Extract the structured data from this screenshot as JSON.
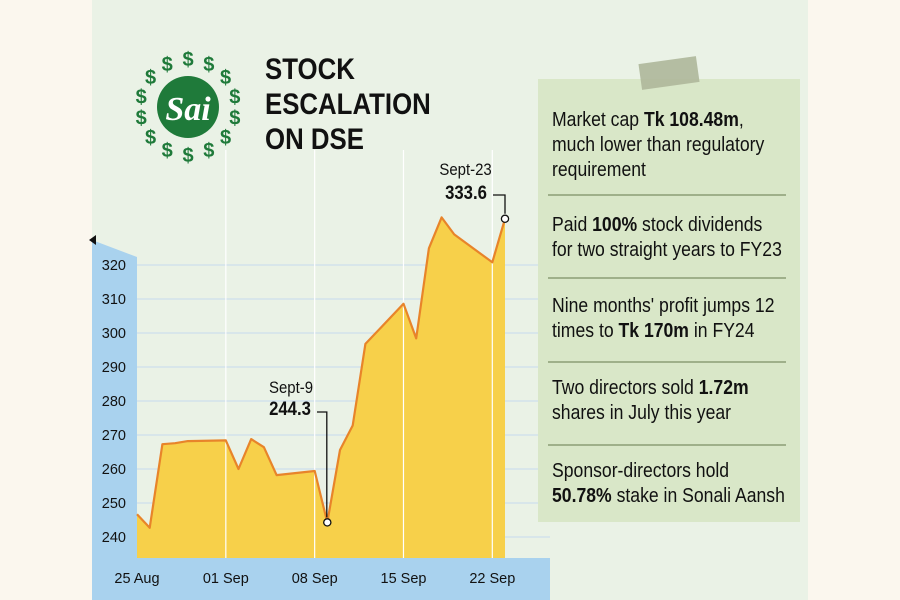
{
  "headline": [
    "STOCK",
    "ESCALATION",
    "ON DSE"
  ],
  "logo": {
    "text": "Sai",
    "ring_char": "$",
    "color": "#1f7a3a"
  },
  "colors": {
    "area_fill": "#f7d04a",
    "line": "#e8842a",
    "axis_band": "#a9d2ee",
    "panel": "#eaf2e6",
    "note_card": "#d9e7c8"
  },
  "notes": [
    {
      "lines": [
        [
          {
            "t": "Market cap "
          },
          {
            "t": "Tk 108.48m",
            "b": true
          },
          {
            "t": ","
          }
        ],
        [
          {
            "t": "much lower than regulatory"
          }
        ],
        [
          {
            "t": "requirement"
          }
        ]
      ]
    },
    {
      "lines": [
        [
          {
            "t": "Paid "
          },
          {
            "t": "100%",
            "b": true
          },
          {
            "t": " stock dividends"
          }
        ],
        [
          {
            "t": "for two straight years to FY23"
          }
        ]
      ]
    },
    {
      "lines": [
        [
          {
            "t": "Nine months' profit jumps 12"
          }
        ],
        [
          {
            "t": "times to "
          },
          {
            "t": "Tk 170m",
            "b": true
          },
          {
            "t": " in FY24"
          }
        ]
      ]
    },
    {
      "lines": [
        [
          {
            "t": "Two directors sold "
          },
          {
            "t": "1.72m",
            "b": true
          }
        ],
        [
          {
            "t": "shares in July this year"
          }
        ]
      ]
    },
    {
      "lines": [
        [
          {
            "t": "Sponsor-directors hold"
          }
        ],
        [
          {
            "t": "50.78%",
            "b": true
          },
          {
            "t": " stake in Sonali Aansh"
          }
        ]
      ]
    }
  ],
  "annotations": [
    {
      "date": "Sept-9",
      "value": "244.3"
    },
    {
      "date": "Sept-23",
      "value": "333.6"
    }
  ],
  "chart_data": {
    "type": "area",
    "title": "",
    "xlabel": "",
    "ylabel": "",
    "x_ticks": [
      "25 Aug",
      "01 Sep",
      "08 Sep",
      "15 Sep",
      "22 Sep"
    ],
    "y_ticks": [
      240,
      250,
      260,
      270,
      280,
      290,
      300,
      310,
      320
    ],
    "ylim": [
      234,
      326
    ],
    "grid": true,
    "series": [
      {
        "x": [
          "2024-08-25",
          "2024-08-26",
          "2024-08-27",
          "2024-08-28",
          "2024-08-29",
          "2024-09-01",
          "2024-09-02",
          "2024-09-03",
          "2024-09-04",
          "2024-09-05",
          "2024-09-08",
          "2024-09-09",
          "2024-09-10",
          "2024-09-11",
          "2024-09-12",
          "2024-09-15",
          "2024-09-16",
          "2024-09-17",
          "2024-09-18",
          "2024-09-19",
          "2024-09-22",
          "2024-09-23"
        ],
        "values": [
          246.7,
          242.7,
          267.3,
          267.6,
          268.2,
          268.4,
          260.0,
          268.8,
          266.4,
          258.2,
          259.4,
          244.3,
          265.6,
          272.8,
          296.8,
          308.6,
          298.4,
          324.9,
          334.0,
          329.0,
          320.8,
          333.6
        ]
      }
    ]
  }
}
